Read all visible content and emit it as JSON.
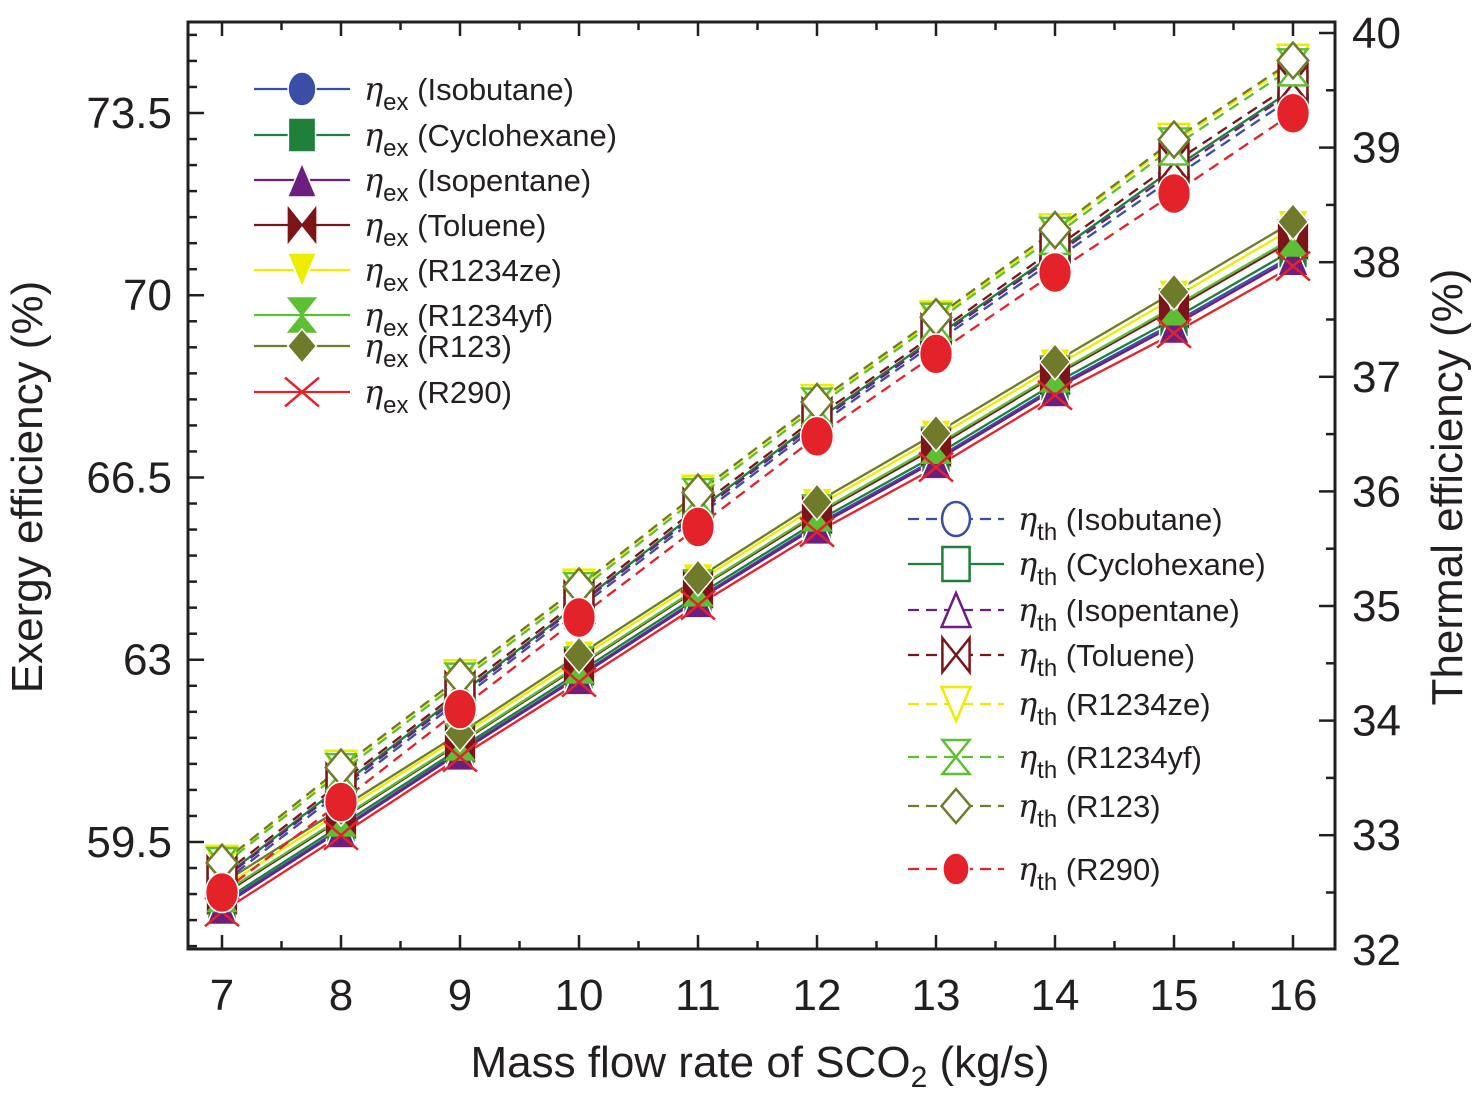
{
  "chart_data": {
    "type": "line",
    "title": "",
    "xlabel": "Mass flow rate of SCO2 (kg/s)",
    "xlabel_parts": {
      "main": "Mass flow rate of SCO",
      "sub": "2",
      "tail": " (kg/s)"
    },
    "ylabel_left": "Exergy efficiency (%)",
    "ylabel_right": "Thermal efficiency (%)",
    "x": [
      7,
      8,
      9,
      10,
      11,
      12,
      13,
      14,
      15,
      16
    ],
    "x_ticks": [
      "7",
      "8",
      "9",
      "10",
      "11",
      "12",
      "13",
      "14",
      "15",
      "16"
    ],
    "xlim": [
      6.72,
      16.35
    ],
    "ylim_left": [
      57.42,
      75.25
    ],
    "ylim_right": [
      32,
      40.1
    ],
    "y_ticks_left": [
      "59.5",
      "63",
      "66.5",
      "70",
      "73.5"
    ],
    "y_ticks_left_values": [
      59.5,
      63,
      66.5,
      70,
      73.5
    ],
    "y_ticks_right": [
      "32",
      "33",
      "34",
      "35",
      "36",
      "37",
      "38",
      "39",
      "40"
    ],
    "y_ticks_right_values": [
      32,
      33,
      34,
      35,
      36,
      37,
      38,
      39,
      40
    ],
    "grid": false,
    "legend_exergy_placement": "top-left",
    "legend_thermal_placement": "middle-right",
    "series": [
      {
        "name": "ηex (Isobutane)",
        "symbol": "ex",
        "fluid": "Isobutane",
        "axis": "left",
        "color": "#3a4ea6",
        "marker": "circle",
        "filled": true,
        "dashed": false,
        "values": [
          58.3,
          59.76,
          61.25,
          62.7,
          64.18,
          65.6,
          66.86,
          68.24,
          69.47,
          70.77
        ]
      },
      {
        "name": "ηex (Cyclohexane)",
        "symbol": "ex",
        "fluid": "Cyclohexane",
        "axis": "left",
        "color": "#1f7f3b",
        "marker": "square",
        "filled": true,
        "dashed": false,
        "values": [
          58.35,
          59.82,
          61.3,
          62.76,
          64.24,
          65.66,
          66.93,
          68.31,
          69.55,
          70.87
        ]
      },
      {
        "name": "ηex (Isopentane)",
        "symbol": "ex",
        "fluid": "Isopentane",
        "axis": "left",
        "color": "#6d1f80",
        "marker": "triangle-up",
        "filled": true,
        "dashed": false,
        "values": [
          58.26,
          59.73,
          61.22,
          62.67,
          64.15,
          65.56,
          66.82,
          68.2,
          69.42,
          70.72
        ]
      },
      {
        "name": "ηex (Toluene)",
        "symbol": "ex",
        "fluid": "Toluene",
        "axis": "left",
        "color": "#7c1519",
        "marker": "bowtie",
        "filled": true,
        "dashed": false,
        "values": [
          58.48,
          59.94,
          61.4,
          62.88,
          64.36,
          65.79,
          67.08,
          68.46,
          69.74,
          71.06
        ]
      },
      {
        "name": "ηex (R1234ze)",
        "symbol": "ex",
        "fluid": "R1234ze",
        "axis": "left",
        "color": "#eded00",
        "marker": "triangle-down",
        "filled": true,
        "dashed": false,
        "values": [
          58.62,
          60.08,
          61.53,
          63.02,
          64.5,
          65.95,
          67.26,
          68.63,
          69.95,
          71.29
        ]
      },
      {
        "name": "ηex (R1234yf)",
        "symbol": "ex",
        "fluid": "R1234yf",
        "axis": "left",
        "color": "#5dbf33",
        "marker": "hourglass",
        "filled": true,
        "dashed": false,
        "values": [
          58.51,
          59.96,
          61.42,
          62.9,
          64.38,
          65.82,
          67.12,
          68.49,
          69.78,
          71.1
        ]
      },
      {
        "name": "ηex (R123)",
        "symbol": "ex",
        "fluid": "R123",
        "axis": "left",
        "color": "#6f7b2a",
        "marker": "diamond",
        "filled": true,
        "dashed": false,
        "values": [
          58.7,
          60.15,
          61.59,
          63.09,
          64.57,
          66.03,
          67.35,
          68.72,
          70.06,
          71.41
        ]
      },
      {
        "name": "ηex (R290)",
        "symbol": "ex",
        "fluid": "R290",
        "axis": "left",
        "color": "#e42229",
        "marker": "x",
        "filled": false,
        "dashed": false,
        "values": [
          58.16,
          59.63,
          61.13,
          62.57,
          64.05,
          65.45,
          66.7,
          68.08,
          69.27,
          70.56
        ]
      },
      {
        "name": "ηth (Isobutane)",
        "symbol": "th",
        "fluid": "Isobutane",
        "axis": "right",
        "color": "#3a4ea6",
        "marker": "circle",
        "filled": false,
        "dashed": true,
        "values": [
          32.58,
          33.38,
          34.18,
          34.98,
          35.78,
          36.57,
          37.3,
          38.02,
          38.74,
          39.44
        ]
      },
      {
        "name": "ηth (Cyclohexane)",
        "symbol": "th",
        "fluid": "Cyclohexane",
        "axis": "right",
        "color": "#1f7f3b",
        "marker": "square",
        "filled": false,
        "dashed": false,
        "values": [
          32.62,
          33.43,
          34.23,
          35.02,
          35.83,
          36.62,
          37.35,
          38.08,
          38.82,
          39.51
        ]
      },
      {
        "name": "ηth (Isopentane)",
        "symbol": "th",
        "fluid": "Isopentane",
        "axis": "right",
        "color": "#6d1f80",
        "marker": "triangle-up",
        "filled": false,
        "dashed": true,
        "values": [
          32.61,
          33.41,
          34.21,
          35.01,
          35.81,
          36.6,
          37.33,
          38.06,
          38.79,
          39.49
        ]
      },
      {
        "name": "ηth (Toluene)",
        "symbol": "th",
        "fluid": "Toluene",
        "axis": "right",
        "color": "#7c1519",
        "marker": "bowtie",
        "filled": false,
        "dashed": true,
        "values": [
          32.65,
          33.46,
          34.26,
          35.05,
          35.86,
          36.65,
          37.38,
          38.12,
          38.87,
          39.56
        ]
      },
      {
        "name": "ηth (R1234ze)",
        "symbol": "th",
        "fluid": "R1234ze",
        "axis": "right",
        "color": "#eded00",
        "marker": "triangle-down",
        "filled": false,
        "dashed": true,
        "values": [
          32.75,
          33.58,
          34.37,
          35.16,
          35.98,
          36.77,
          37.5,
          38.26,
          39.05,
          39.74
        ]
      },
      {
        "name": "ηth (R1234yf)",
        "symbol": "th",
        "fluid": "R1234yf",
        "axis": "right",
        "color": "#5dbf33",
        "marker": "hourglass",
        "filled": false,
        "dashed": true,
        "values": [
          32.73,
          33.55,
          34.34,
          35.13,
          35.95,
          36.74,
          37.48,
          38.23,
          39.01,
          39.7
        ]
      },
      {
        "name": "ηth (R123)",
        "symbol": "th",
        "fluid": "R123",
        "axis": "right",
        "color": "#6f7b2a",
        "marker": "diamond",
        "filled": false,
        "dashed": true,
        "values": [
          32.76,
          33.59,
          34.38,
          35.17,
          35.99,
          36.78,
          37.52,
          38.28,
          39.07,
          39.76
        ]
      },
      {
        "name": "ηth (R290)",
        "symbol": "th",
        "fluid": "R290",
        "axis": "right",
        "color": "#e42229",
        "marker": "circle",
        "filled": true,
        "dashed": true,
        "values": [
          32.5,
          33.29,
          34.1,
          34.9,
          35.69,
          36.48,
          37.2,
          37.91,
          38.6,
          39.3
        ]
      }
    ]
  }
}
